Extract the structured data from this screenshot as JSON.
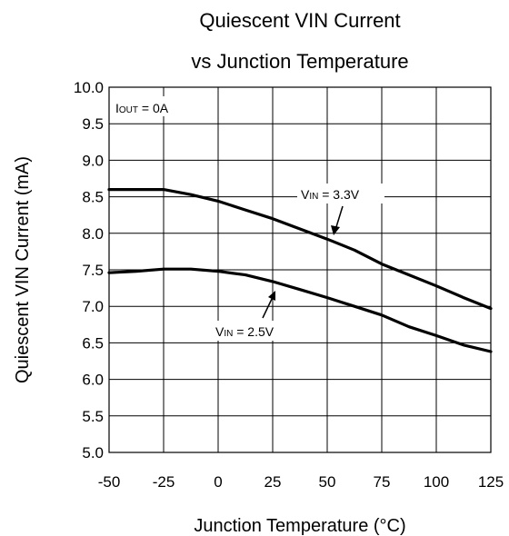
{
  "chart_data": {
    "type": "line",
    "title": [
      "Quiescent VIN Current",
      "vs Junction Temperature"
    ],
    "xlabel": "Junction Temperature (°C)",
    "ylabel": "Quiescent VIN Current (mA)",
    "xlim": [
      -50,
      125
    ],
    "ylim": [
      5.0,
      10.0
    ],
    "xticks": [
      -50,
      -25,
      0,
      25,
      50,
      75,
      100,
      125
    ],
    "xtick_labels": [
      "-50",
      "-25",
      "0",
      "25",
      "50",
      "75",
      "100",
      "125"
    ],
    "yticks": [
      5.0,
      5.5,
      6.0,
      6.5,
      7.0,
      7.5,
      8.0,
      8.5,
      9.0,
      9.5,
      10.0
    ],
    "ytick_labels": [
      "5.0",
      "5.5",
      "6.0",
      "6.5",
      "7.0",
      "7.5",
      "8.0",
      "8.5",
      "9.0",
      "9.5",
      "10.0"
    ],
    "grid": true,
    "condition": {
      "main": "I",
      "sub": "OUT",
      "rest": " = 0A"
    },
    "series": [
      {
        "label": {
          "main": "V",
          "sub": "IN",
          "rest": " = 3.3V"
        },
        "x": [
          -50,
          -25,
          -12.5,
          0,
          12.5,
          25,
          37.5,
          50,
          62.5,
          75,
          87.5,
          100,
          112.5,
          125
        ],
        "y": [
          8.6,
          8.6,
          8.53,
          8.44,
          8.32,
          8.2,
          8.06,
          7.92,
          7.77,
          7.58,
          7.43,
          7.28,
          7.12,
          6.97
        ]
      },
      {
        "label": {
          "main": "V",
          "sub": "IN",
          "rest": " = 2.5V"
        },
        "x": [
          -50,
          -37.5,
          -25,
          -12.5,
          0,
          12.5,
          25,
          37.5,
          50,
          62.5,
          75,
          87.5,
          100,
          112.5,
          125
        ],
        "y": [
          7.46,
          7.48,
          7.51,
          7.51,
          7.48,
          7.43,
          7.34,
          7.23,
          7.12,
          7.0,
          6.88,
          6.72,
          6.6,
          6.47,
          6.38
        ]
      }
    ]
  }
}
